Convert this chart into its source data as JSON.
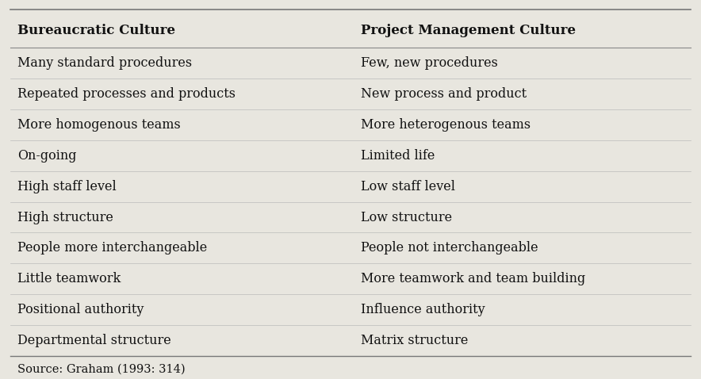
{
  "col1_header": "Bureaucratic Culture",
  "col2_header": "Project Management Culture",
  "rows": [
    [
      "Many standard procedures",
      "Few, new procedures"
    ],
    [
      "Repeated processes and products",
      "New process and product"
    ],
    [
      "More homogenous teams",
      "More heterogenous teams"
    ],
    [
      "On-going",
      "Limited life"
    ],
    [
      "High staff level",
      "Low staff level"
    ],
    [
      "High structure",
      "Low structure"
    ],
    [
      "People more interchangeable",
      "People not interchangeable"
    ],
    [
      "Little teamwork",
      "More teamwork and team building"
    ],
    [
      "Positional authority",
      "Influence authority"
    ],
    [
      "Departmental structure",
      "Matrix structure"
    ]
  ],
  "source_text": "Source: Graham (1993: 314)",
  "bg_color": "#e8e6df",
  "text_color": "#111111",
  "header_fontsize": 12,
  "body_fontsize": 11.5,
  "source_fontsize": 10.5,
  "col_split": 0.5
}
